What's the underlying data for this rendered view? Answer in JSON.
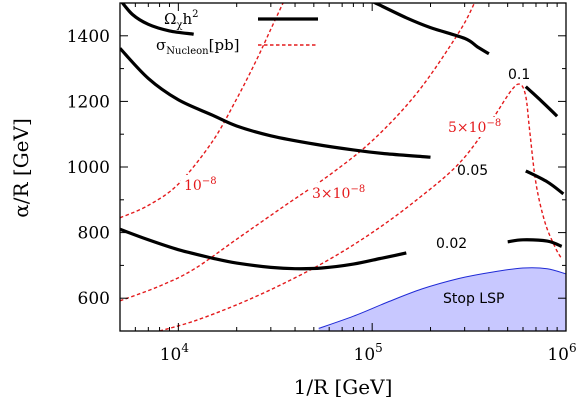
{
  "chart_data": {
    "type": "line",
    "title": "",
    "xlabel": "1/R [GeV]",
    "ylabel": "α/R [GeV]",
    "xscale": "log",
    "xlim": [
      5000,
      1000000
    ],
    "ylim": [
      500,
      1500
    ],
    "xticks": [
      10000,
      100000,
      1000000
    ],
    "xtick_labels": [
      {
        "base": "10",
        "exp": "4"
      },
      {
        "base": "10",
        "exp": "5"
      },
      {
        "base": "10",
        "exp": "6"
      }
    ],
    "yticks": [
      600,
      800,
      1000,
      1200,
      1400
    ],
    "ytick_labels": [
      "600",
      "800",
      "1000",
      "1200",
      "1400"
    ],
    "grid": false,
    "legend": {
      "placement": "top-right",
      "entries": [
        {
          "label_main": "Ω",
          "label_sub": "χ",
          "label_rest": "h",
          "label_sup": "2",
          "style": "solid-black"
        },
        {
          "label_main": "σ",
          "label_sub": "Nucleon",
          "label_rest": "[pb]",
          "label_sup": "",
          "style": "dashed-red"
        }
      ]
    },
    "relic_density_series": [
      {
        "name": "Ωχh² = 0.02",
        "label": "0.02",
        "style": "solid-black",
        "segments": [
          [
            [
              5000,
              810
            ],
            [
              7000,
              778
            ],
            [
              10000,
              748
            ],
            [
              15000,
              722
            ],
            [
              20000,
              707
            ],
            [
              30000,
              694
            ],
            [
              40000,
              690
            ],
            [
              55000,
              692
            ],
            [
              80000,
              704
            ],
            [
              110000,
              721
            ],
            [
              150000,
              738
            ]
          ],
          [
            [
              500000,
              772
            ],
            [
              600000,
              778
            ],
            [
              800000,
              774
            ],
            [
              950000,
              758
            ]
          ]
        ]
      },
      {
        "name": "Ωχh² = 0.05",
        "label": "0.05",
        "style": "solid-black",
        "segments": [
          [
            [
              5000,
              1362
            ],
            [
              7000,
              1270
            ],
            [
              10000,
              1205
            ],
            [
              15000,
              1158
            ],
            [
              20000,
              1125
            ],
            [
              30000,
              1095
            ],
            [
              50000,
              1070
            ],
            [
              80000,
              1052
            ],
            [
              120000,
              1040
            ],
            [
              200000,
              1030
            ]
          ],
          [
            [
              620000,
              988
            ],
            [
              800000,
              955
            ],
            [
              970000,
              918
            ]
          ]
        ]
      },
      {
        "name": "Ωχh² = 0.1",
        "label": "0.1",
        "style": "solid-black",
        "segments": [
          [
            [
              5000,
              1510
            ],
            [
              5800,
              1465
            ],
            [
              7000,
              1435
            ],
            [
              9000,
              1415
            ],
            [
              12000,
              1405
            ]
          ],
          [
            [
              100000,
              1505
            ],
            [
              150000,
              1455
            ],
            [
              200000,
              1425
            ],
            [
              300000,
              1392
            ],
            [
              350000,
              1366
            ],
            [
              400000,
              1345
            ]
          ],
          [
            [
              620000,
              1245
            ],
            [
              750000,
              1200
            ],
            [
              900000,
              1155
            ]
          ]
        ]
      }
    ],
    "cross_section_series": [
      {
        "name": "σNucleon = 1e-8 pb",
        "label_base": "10",
        "label_exp": "−8",
        "style": "dashed-red",
        "points": [
          [
            5000,
            845
          ],
          [
            7000,
            883
          ],
          [
            10000,
            948
          ],
          [
            15000,
            1078
          ],
          [
            20000,
            1208
          ],
          [
            25000,
            1320
          ],
          [
            30000,
            1420
          ],
          [
            35000,
            1505
          ]
        ]
      },
      {
        "name": "σNucleon = 3e-8 pb",
        "label_base": "3×10",
        "label_exp": "−8",
        "style": "dashed-red",
        "points": [
          [
            5000,
            592
          ],
          [
            8000,
            637
          ],
          [
            12000,
            688
          ],
          [
            20000,
            780
          ],
          [
            35000,
            880
          ],
          [
            60000,
            975
          ],
          [
            100000,
            1080
          ],
          [
            170000,
            1225
          ],
          [
            280000,
            1410
          ],
          [
            340000,
            1505
          ]
        ]
      },
      {
        "name": "σNucleon = 5e-8 pb",
        "label_base": "5×10",
        "label_exp": "−8",
        "style": "dashed-red",
        "points": [
          [
            8000,
            500
          ],
          [
            12000,
            530
          ],
          [
            20000,
            580
          ],
          [
            35000,
            645
          ],
          [
            60000,
            718
          ],
          [
            100000,
            800
          ],
          [
            170000,
            900
          ],
          [
            280000,
            1010
          ],
          [
            400000,
            1130
          ],
          [
            520000,
            1232
          ],
          [
            580000,
            1252
          ],
          [
            620000,
            1215
          ],
          [
            650000,
            1110
          ],
          [
            700000,
            950
          ],
          [
            780000,
            830
          ],
          [
            880000,
            755
          ],
          [
            950000,
            720
          ]
        ]
      }
    ],
    "excluded_region": {
      "label": "Stop LSP",
      "fill_color": "#c8c8ff",
      "edge_color": "#1f2ad6",
      "boundary": [
        [
          53000,
          508
        ],
        [
          80000,
          545
        ],
        [
          120000,
          588
        ],
        [
          180000,
          628
        ],
        [
          280000,
          660
        ],
        [
          420000,
          680
        ],
        [
          600000,
          692
        ],
        [
          800000,
          690
        ],
        [
          1000000,
          674
        ]
      ]
    },
    "colors": {
      "relic": "#000000",
      "cross_section": "#e41a1c"
    }
  }
}
